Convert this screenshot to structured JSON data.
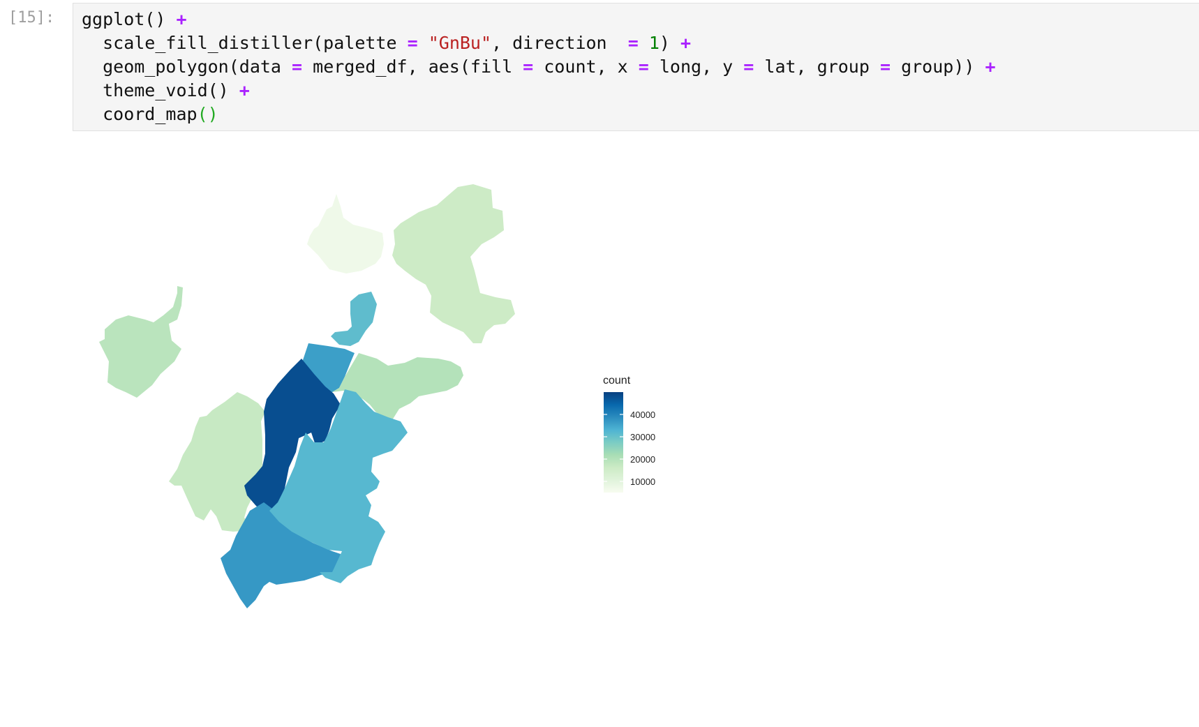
{
  "cell": {
    "prompt": "[15]:",
    "code": [
      {
        "tokens": [
          {
            "t": "ggplot() ",
            "c": ""
          },
          {
            "t": "+",
            "c": "op"
          }
        ]
      },
      {
        "tokens": [
          {
            "t": "  scale_fill_distiller(palette ",
            "c": ""
          },
          {
            "t": "=",
            "c": "op"
          },
          {
            "t": " ",
            "c": ""
          },
          {
            "t": "\"GnBu\"",
            "c": "str"
          },
          {
            "t": ", direction  ",
            "c": ""
          },
          {
            "t": "=",
            "c": "op"
          },
          {
            "t": " ",
            "c": ""
          },
          {
            "t": "1",
            "c": "num"
          },
          {
            "t": ") ",
            "c": ""
          },
          {
            "t": "+",
            "c": "op"
          }
        ]
      },
      {
        "tokens": [
          {
            "t": "  geom_polygon(data ",
            "c": ""
          },
          {
            "t": "=",
            "c": "op"
          },
          {
            "t": " merged_df, aes(fill ",
            "c": ""
          },
          {
            "t": "=",
            "c": "op"
          },
          {
            "t": " count, x ",
            "c": ""
          },
          {
            "t": "=",
            "c": "op"
          },
          {
            "t": " long, y ",
            "c": ""
          },
          {
            "t": "=",
            "c": "op"
          },
          {
            "t": " lat, group ",
            "c": ""
          },
          {
            "t": "=",
            "c": "op"
          },
          {
            "t": " group)) ",
            "c": ""
          },
          {
            "t": "+",
            "c": "op"
          }
        ]
      },
      {
        "tokens": [
          {
            "t": "  theme_void() ",
            "c": ""
          },
          {
            "t": "+",
            "c": "op"
          }
        ]
      },
      {
        "tokens": [
          {
            "t": "  coord_map",
            "c": ""
          },
          {
            "t": "()",
            "c": "paren-g"
          }
        ]
      }
    ]
  },
  "chart_data": {
    "type": "choropleth map",
    "fill_variable": "count",
    "palette": "GnBu",
    "legend": {
      "title": "count",
      "placement": "right",
      "ticks": [
        10000,
        20000,
        30000,
        40000
      ],
      "tick_labels": [
        "10000",
        "20000",
        "30000",
        "40000"
      ],
      "range": [
        5000,
        50000
      ],
      "colors": [
        "#f7fcf0",
        "#e0f3db",
        "#ccebc5",
        "#a8ddb5",
        "#7bccc4",
        "#4eb3d3",
        "#2b8cbe",
        "#0868ac",
        "#084081"
      ]
    },
    "regions": [
      {
        "id": "north-west-a",
        "count": 7000
      },
      {
        "id": "north-east",
        "count": 16000
      },
      {
        "id": "west",
        "count": 19000
      },
      {
        "id": "center-north",
        "count": 31000
      },
      {
        "id": "center-north-b",
        "count": 36000
      },
      {
        "id": "center-east",
        "count": 20000
      },
      {
        "id": "center-west",
        "count": 17000
      },
      {
        "id": "center",
        "count": 48000
      },
      {
        "id": "south-center",
        "count": 37000
      },
      {
        "id": "south",
        "count": 32000
      }
    ]
  }
}
